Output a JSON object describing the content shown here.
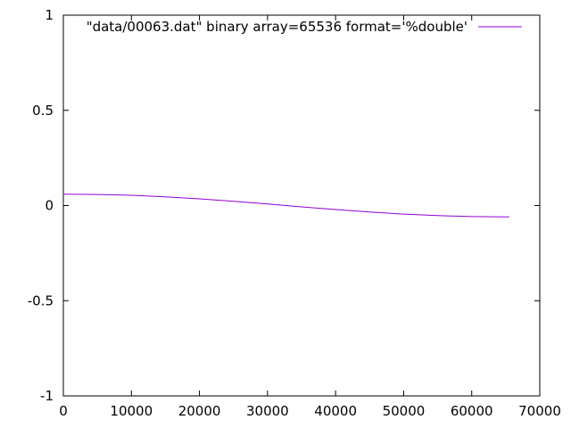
{
  "chart_data": {
    "type": "line",
    "title": "",
    "xlabel": "",
    "ylabel": "",
    "xlim": [
      0,
      70000
    ],
    "ylim": [
      -1,
      1
    ],
    "x_ticks": [
      0,
      10000,
      20000,
      30000,
      40000,
      50000,
      60000,
      70000
    ],
    "x_tick_labels": [
      "0",
      "10000",
      "20000",
      "30000",
      "40000",
      "50000",
      "60000",
      "70000"
    ],
    "y_ticks": [
      -1,
      -0.5,
      0,
      0.5,
      1
    ],
    "y_tick_labels": [
      "-1",
      "-0.5",
      "0",
      "0.5",
      "1"
    ],
    "grid": false,
    "legend_position": "top-right",
    "series": [
      {
        "name": "\"data/00063.dat\" binary array=65536 format='%double'",
        "color": "#9400d3",
        "x": [
          0,
          5000,
          10000,
          15000,
          20000,
          25000,
          30000,
          35000,
          40000,
          45000,
          50000,
          55000,
          60000,
          65535
        ],
        "y": [
          0.06,
          0.058,
          0.054,
          0.046,
          0.035,
          0.022,
          0.008,
          -0.007,
          -0.021,
          -0.034,
          -0.045,
          -0.053,
          -0.058,
          -0.06
        ]
      }
    ]
  }
}
